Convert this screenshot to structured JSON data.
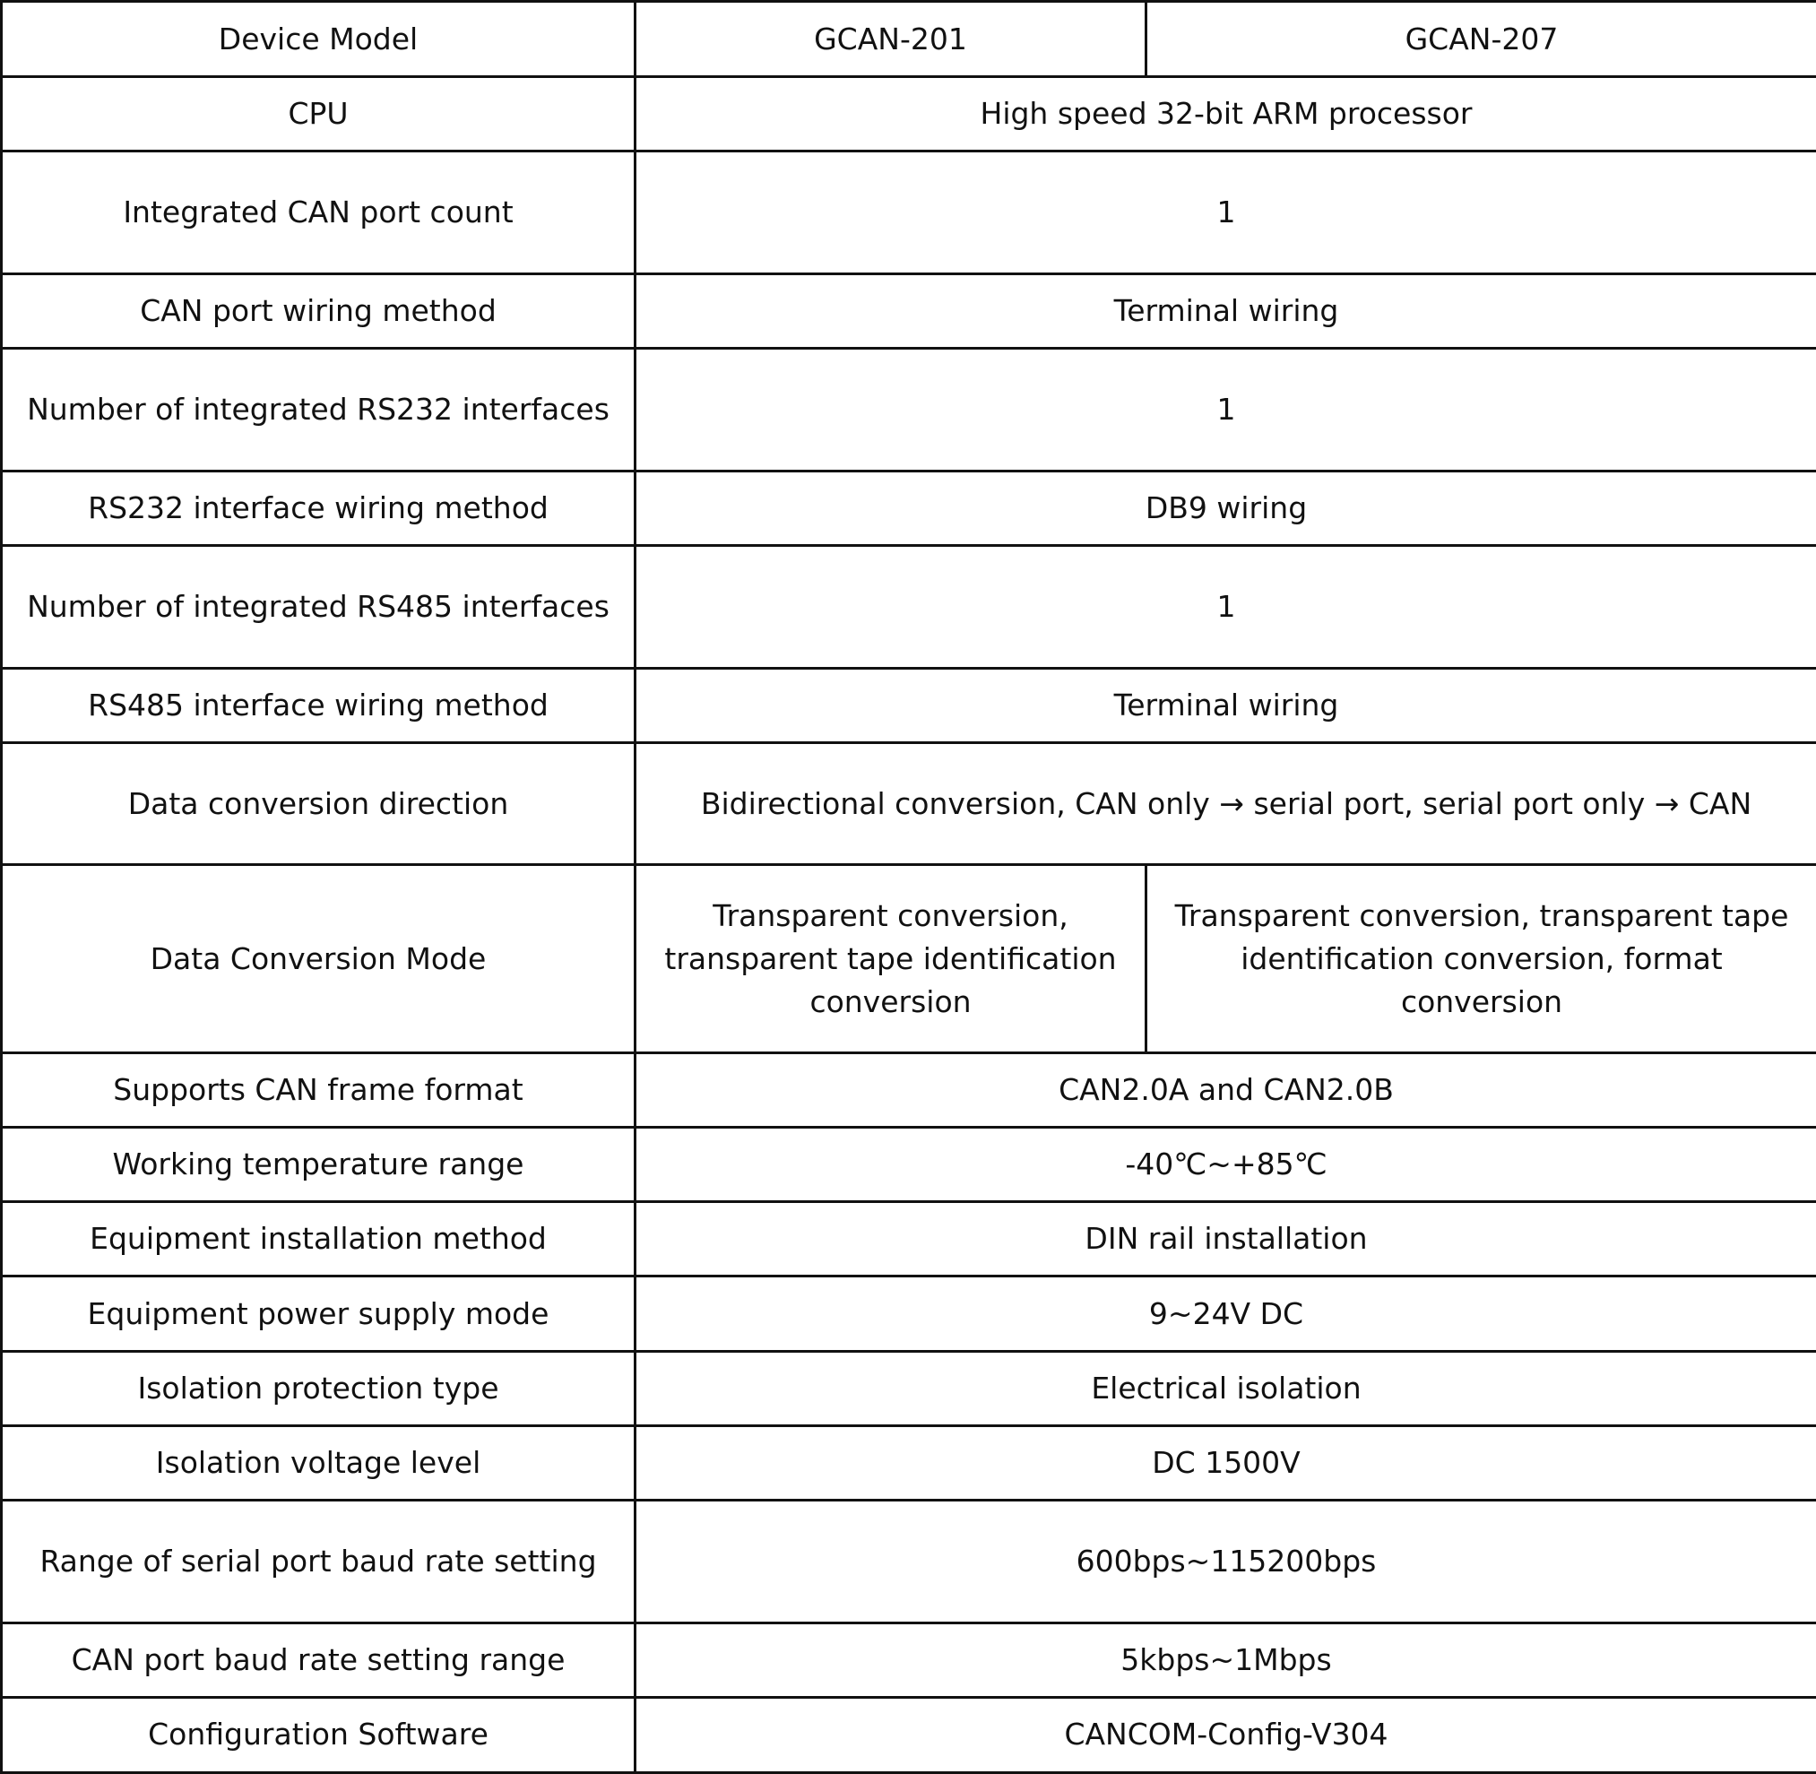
{
  "table": {
    "header": {
      "label": "Device Model",
      "models": [
        "GCAN-201",
        "GCAN-207"
      ]
    },
    "rows": [
      {
        "label": "CPU",
        "value": "High speed 32-bit ARM processor"
      },
      {
        "label": "Integrated CAN port count",
        "value": "1"
      },
      {
        "label": "CAN port wiring method",
        "value": "Terminal wiring"
      },
      {
        "label": "Number of integrated RS232 interfaces",
        "value": "1"
      },
      {
        "label": "RS232 interface wiring method",
        "value": "DB9 wiring"
      },
      {
        "label": "Number of integrated RS485 interfaces",
        "value": "1"
      },
      {
        "label": "RS485 interface wiring method",
        "value": "Terminal wiring"
      },
      {
        "label": "Data conversion direction",
        "value": "Bidirectional conversion, CAN only → serial port, serial port only → CAN"
      },
      {
        "label": "Data Conversion Mode",
        "values": [
          "Transparent conversion, transparent tape identification conversion",
          "Transparent conversion, transparent tape identification conversion, format conversion"
        ]
      },
      {
        "label": "Supports CAN frame format",
        "value": "CAN2.0A and CAN2.0B"
      },
      {
        "label": "Working temperature range",
        "value": "-40℃~+85℃"
      },
      {
        "label": "Equipment installation method",
        "value": "DIN rail installation"
      },
      {
        "label": "Equipment power supply mode",
        "value": "9~24V DC"
      },
      {
        "label": "Isolation protection type",
        "value": "Electrical isolation"
      },
      {
        "label": "Isolation voltage level",
        "value": "DC 1500V"
      },
      {
        "label": "Range of serial port baud rate setting",
        "value": "600bps~115200bps"
      },
      {
        "label": "CAN port baud rate setting range",
        "value": "5kbps~1Mbps"
      },
      {
        "label": "Configuration Software",
        "value": "CANCOM-Config-V304"
      }
    ]
  }
}
